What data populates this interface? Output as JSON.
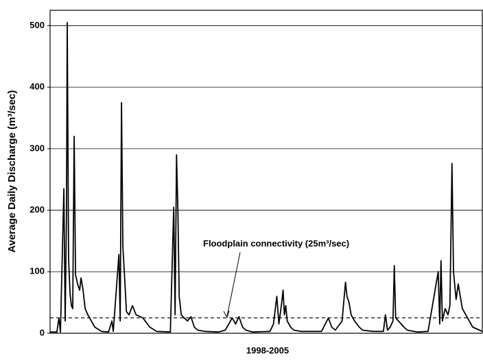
{
  "chart_data": {
    "type": "line",
    "y_label": "Average Daily Discharge (m³/sec)",
    "x_label": "1998-2005",
    "annotation": "Floodplain connectivity (25m³/sec)",
    "threshold": 25,
    "xlim": [
      0,
      2922
    ],
    "ylim": [
      0,
      525
    ],
    "yticks": [
      0,
      100,
      200,
      300,
      400,
      500
    ],
    "grid": true,
    "series": [
      {
        "name": "Average Daily Discharge",
        "color": "#000000",
        "x": [
          0,
          46,
          60,
          70,
          93,
          102,
          111,
          116,
          125,
          135,
          144,
          153,
          163,
          172,
          186,
          200,
          209,
          223,
          237,
          255,
          302,
          348,
          395,
          418,
          427,
          465,
          474,
          483,
          492,
          502,
          516,
          534,
          557,
          581,
          627,
          674,
          720,
          813,
          836,
          845,
          855,
          864,
          873,
          887,
          906,
          929,
          952,
          975,
          999,
          1045,
          1138,
          1184,
          1208,
          1231,
          1254,
          1277,
          1301,
          1324,
          1370,
          1486,
          1510,
          1533,
          1547,
          1565,
          1575,
          1584,
          1593,
          1603,
          1626,
          1649,
          1695,
          1835,
          1881,
          1904,
          1928,
          1974,
          1997,
          2007,
          2021,
          2035,
          2058,
          2090,
          2113,
          2183,
          2253,
          2267,
          2281,
          2299,
          2318,
          2327,
          2336,
          2355,
          2374,
          2392,
          2415,
          2485,
          2555,
          2624,
          2634,
          2643,
          2652,
          2671,
          2690,
          2703,
          2717,
          2727,
          2745,
          2759,
          2773,
          2787,
          2810,
          2857,
          2903,
          2922
        ],
        "values": [
          2,
          2,
          25,
          2,
          235,
          20,
          190,
          505,
          120,
          65,
          45,
          40,
          320,
          95,
          80,
          70,
          90,
          70,
          40,
          30,
          10,
          3,
          2,
          20,
          3,
          128,
          20,
          375,
          140,
          100,
          35,
          30,
          45,
          30,
          25,
          10,
          3,
          2,
          205,
          30,
          290,
          200,
          60,
          30,
          25,
          20,
          27,
          10,
          5,
          3,
          2,
          5,
          15,
          25,
          15,
          27,
          10,
          5,
          2,
          3,
          15,
          60,
          15,
          48,
          70,
          30,
          45,
          20,
          10,
          5,
          3,
          3,
          25,
          10,
          5,
          20,
          83,
          60,
          50,
          30,
          20,
          10,
          5,
          3,
          3,
          30,
          5,
          10,
          20,
          110,
          25,
          20,
          15,
          10,
          5,
          2,
          3,
          100,
          15,
          118,
          20,
          40,
          30,
          45,
          276,
          100,
          55,
          80,
          60,
          40,
          30,
          10,
          5,
          3
        ]
      }
    ]
  }
}
